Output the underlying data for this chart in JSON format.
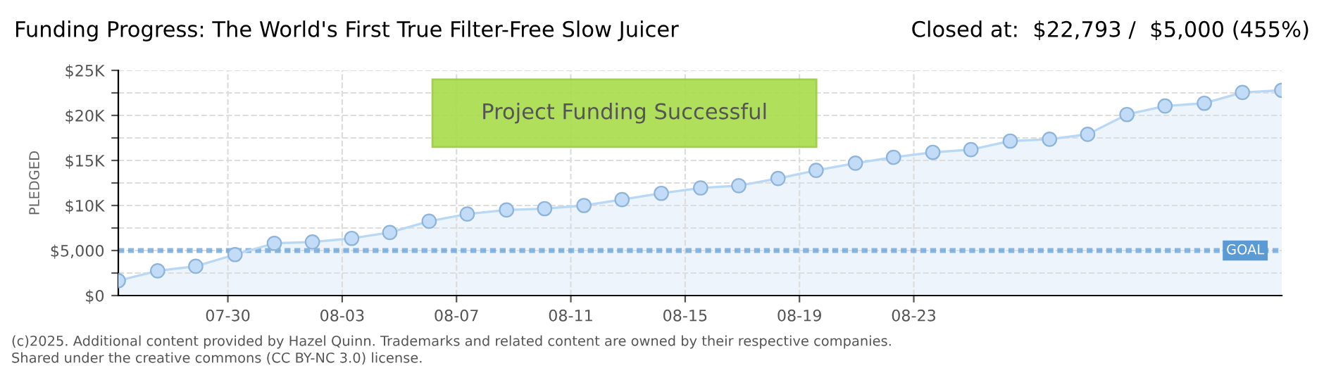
{
  "chart_data": {
    "type": "area",
    "title": "Funding Progress: The World's First True Filter-Free Slow Juicer",
    "subtitle": "Closed at:  $22,793 /  $5,000 (455%)",
    "ylabel": "PLEDGED",
    "x": [
      "2025-07-26T04:00",
      "2025-07-27T13:00",
      "2025-07-28T21:00",
      "2025-07-30T06:00",
      "2025-07-31T15:00",
      "2025-08-01T23:00",
      "2025-08-03T08:00",
      "2025-08-04T16:00",
      "2025-08-06T01:00",
      "2025-08-07T09:00",
      "2025-08-08T18:00",
      "2025-08-10T02:00",
      "2025-08-11T11:00",
      "2025-08-12T19:00",
      "2025-08-14T04:00",
      "2025-08-15T13:00",
      "2025-08-16T21:00",
      "2025-08-18T06:00",
      "2025-08-19T14:00",
      "2025-08-20T23:00",
      "2025-08-22T07:00",
      "2025-08-23T16:00",
      "2025-08-25T00:00",
      "2025-08-26T09:00",
      "2025-08-27T18:00",
      "2025-08-29T02:00",
      "2025-08-30T11:00",
      "2025-08-31T19:00",
      "2025-09-02T04:00",
      "2025-09-03T12:00",
      "2025-09-04T21:00"
    ],
    "series": [
      {
        "color": "#b9d8f6",
        "values": [
          1650,
          2750,
          3250,
          4550,
          5800,
          5950,
          6350,
          7000,
          8250,
          9050,
          9500,
          9650,
          10000,
          10650,
          11350,
          11950,
          12200,
          13000,
          13900,
          14700,
          15350,
          15900,
          16200,
          17150,
          17350,
          17900,
          20100,
          21050,
          21350,
          22550,
          22793
        ]
      }
    ],
    "marker": "circle",
    "grid": true,
    "legend": false,
    "xlim": [
      "2025-07-26T04:00",
      "2025-09-04T21:00"
    ],
    "xticks": [
      {
        "value": "2025-07-30",
        "label": "07-30"
      },
      {
        "value": "2025-08-03",
        "label": "08-03"
      },
      {
        "value": "2025-08-07",
        "label": "08-07"
      },
      {
        "value": "2025-08-11",
        "label": "08-11"
      },
      {
        "value": "2025-08-15",
        "label": "08-15"
      },
      {
        "value": "2025-08-19",
        "label": "08-19"
      },
      {
        "value": "2025-08-23",
        "label": "08-23"
      }
    ],
    "ylim": [
      0,
      25000
    ],
    "yticks": [
      {
        "value": 0,
        "label": "$0"
      },
      {
        "value": 2500,
        "label": null
      },
      {
        "value": 5000,
        "label": "$5,000"
      },
      {
        "value": 7500,
        "label": null
      },
      {
        "value": 10000,
        "label": "$10K"
      },
      {
        "value": 12500,
        "label": null
      },
      {
        "value": 15000,
        "label": "$15K"
      },
      {
        "value": 17500,
        "label": null
      },
      {
        "value": 20000,
        "label": "$20K"
      },
      {
        "value": 22500,
        "label": null
      },
      {
        "value": 25000,
        "label": "$25K"
      }
    ],
    "ref_lines": [
      {
        "axis": "y",
        "value": 5000,
        "label": "GOAL",
        "color": "#5b9bd5",
        "line_style": "dotted"
      }
    ],
    "annotations": [
      "Project Funding Successful",
      "(c)2025. Additional content provided by Hazel Quinn. Trademarks and related content are owned by their respective companies.",
      "Shared under the creative commons (CC BY-NC 3.0) license."
    ]
  }
}
